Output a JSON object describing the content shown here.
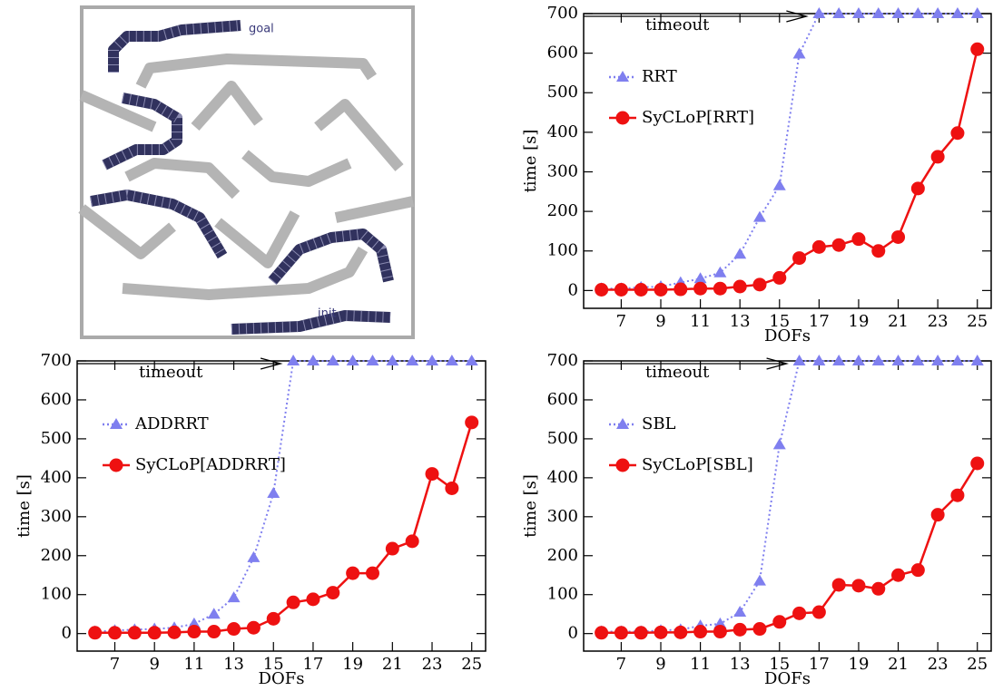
{
  "diagram": {
    "labels": [
      "goal",
      "init"
    ]
  },
  "chart_data": [
    {
      "type": "line",
      "xlabel": "DOFs",
      "ylabel": "time [s]",
      "annotation": "timeout",
      "x": [
        6,
        7,
        8,
        9,
        10,
        11,
        12,
        13,
        14,
        15,
        16,
        17,
        18,
        19,
        20,
        21,
        22,
        23,
        24,
        25
      ],
      "xlim": [
        5.1,
        25.7
      ],
      "xticks": [
        7,
        9,
        11,
        13,
        15,
        17,
        19,
        21,
        23,
        25
      ],
      "ylim": [
        -45,
        700
      ],
      "yticks": [
        0,
        100,
        200,
        300,
        400,
        500,
        600,
        700
      ],
      "series": [
        {
          "name": "RRT",
          "color": "#7f7fef",
          "marker": "triangle",
          "linestyle": "dotted",
          "values": [
            5,
            5,
            8,
            10,
            20,
            30,
            45,
            92,
            185,
            265,
            598,
            700,
            700,
            700,
            700,
            700,
            700,
            700,
            700,
            700
          ]
        },
        {
          "name": "SyCLoP[RRT]",
          "color": "#ee1111",
          "marker": "circle",
          "linestyle": "solid",
          "values": [
            2,
            2,
            2,
            2,
            3,
            5,
            5,
            10,
            15,
            32,
            82,
            110,
            115,
            130,
            100,
            135,
            258,
            338,
            398,
            610
          ]
        }
      ]
    },
    {
      "type": "line",
      "xlabel": "DOFs",
      "ylabel": "time [s]",
      "annotation": "timeout",
      "x": [
        6,
        7,
        8,
        9,
        10,
        11,
        12,
        13,
        14,
        15,
        16,
        17,
        18,
        19,
        20,
        21,
        22,
        23,
        24,
        25
      ],
      "xlim": [
        5.1,
        25.7
      ],
      "xticks": [
        7,
        9,
        11,
        13,
        15,
        17,
        19,
        21,
        23,
        25
      ],
      "ylim": [
        -45,
        700
      ],
      "yticks": [
        0,
        100,
        200,
        300,
        400,
        500,
        600,
        700
      ],
      "series": [
        {
          "name": "ADDRRT",
          "color": "#7f7fef",
          "marker": "triangle",
          "linestyle": "dotted",
          "values": [
            5,
            8,
            10,
            12,
            15,
            25,
            50,
            92,
            195,
            360,
            700,
            700,
            700,
            700,
            700,
            700,
            700,
            700,
            700,
            700
          ]
        },
        {
          "name": "SyCLoP[ADDRRT]",
          "color": "#ee1111",
          "marker": "circle",
          "linestyle": "solid",
          "values": [
            2,
            2,
            2,
            2,
            3,
            5,
            5,
            12,
            15,
            38,
            80,
            88,
            105,
            155,
            155,
            218,
            237,
            410,
            373,
            542
          ]
        }
      ]
    },
    {
      "type": "line",
      "xlabel": "DOFs",
      "ylabel": "time [s]",
      "annotation": "timeout",
      "x": [
        6,
        7,
        8,
        9,
        10,
        11,
        12,
        13,
        14,
        15,
        16,
        17,
        18,
        19,
        20,
        21,
        22,
        23,
        24,
        25
      ],
      "xlim": [
        5.1,
        25.7
      ],
      "xticks": [
        7,
        9,
        11,
        13,
        15,
        17,
        19,
        21,
        23,
        25
      ],
      "ylim": [
        -45,
        700
      ],
      "yticks": [
        0,
        100,
        200,
        300,
        400,
        500,
        600,
        700
      ],
      "series": [
        {
          "name": "SBL",
          "color": "#7f7fef",
          "marker": "triangle",
          "linestyle": "dotted",
          "values": [
            5,
            5,
            5,
            8,
            10,
            20,
            25,
            55,
            135,
            485,
            700,
            700,
            700,
            700,
            700,
            700,
            700,
            700,
            700,
            700
          ]
        },
        {
          "name": "SyCLoP[SBL]",
          "color": "#ee1111",
          "marker": "circle",
          "linestyle": "solid",
          "values": [
            2,
            2,
            2,
            3,
            3,
            5,
            5,
            10,
            12,
            30,
            52,
            55,
            125,
            123,
            115,
            150,
            163,
            305,
            355,
            437
          ]
        }
      ]
    }
  ]
}
